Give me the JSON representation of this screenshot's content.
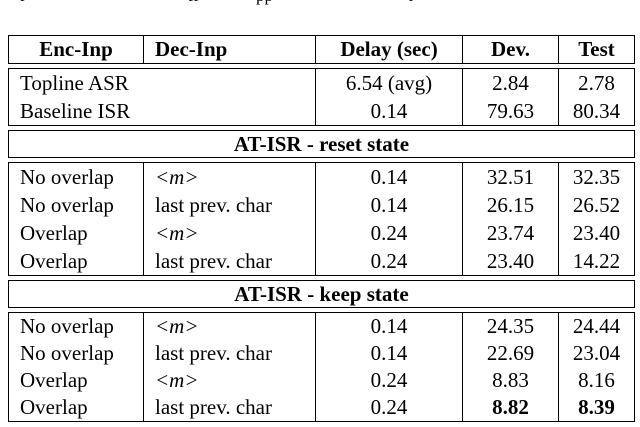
{
  "caption_fragments": [
    "l",
    "ff",
    "pp",
    "t"
  ],
  "table": {
    "columns": {
      "enc": "Enc-Inp",
      "dec": "Dec-Inp",
      "delay": "Delay (sec)",
      "dev": "Dev.",
      "test": "Test"
    },
    "top_block": {
      "rows": [
        {
          "label": "Topline ASR",
          "delay": "6.54 (avg)",
          "dev": "2.84",
          "test": "2.78"
        },
        {
          "label": "Baseline ISR",
          "delay": "0.14",
          "dev": "79.63",
          "test": "80.34"
        }
      ]
    },
    "sections": [
      {
        "title": "AT-ISR - reset state",
        "rows": [
          {
            "enc": "No overlap",
            "dec": "<m>",
            "delay": "0.14",
            "dev": "32.51",
            "test": "32.35"
          },
          {
            "enc": "No overlap",
            "dec": "last prev. char",
            "delay": "0.14",
            "dev": "26.15",
            "test": "26.52"
          },
          {
            "enc": "Overlap",
            "dec": "<m>",
            "delay": "0.24",
            "dev": "23.74",
            "test": "23.40"
          },
          {
            "enc": "Overlap",
            "dec": "last prev. char",
            "delay": "0.24",
            "dev": "23.40",
            "test": "14.22"
          }
        ]
      },
      {
        "title": "AT-ISR - keep state",
        "rows": [
          {
            "enc": "No overlap",
            "dec": "<m>",
            "delay": "0.14",
            "dev": "24.35",
            "test": "24.44"
          },
          {
            "enc": "No overlap",
            "dec": "last prev. char",
            "delay": "0.14",
            "dev": "22.69",
            "test": "23.04"
          },
          {
            "enc": "Overlap",
            "dec": "<m>",
            "delay": "0.24",
            "dev": "8.83",
            "test": "8.16"
          },
          {
            "enc": "Overlap",
            "dec": "last prev. char",
            "delay": "0.24",
            "dev": "8.82",
            "test": "8.39",
            "bold": true
          }
        ]
      }
    ]
  }
}
